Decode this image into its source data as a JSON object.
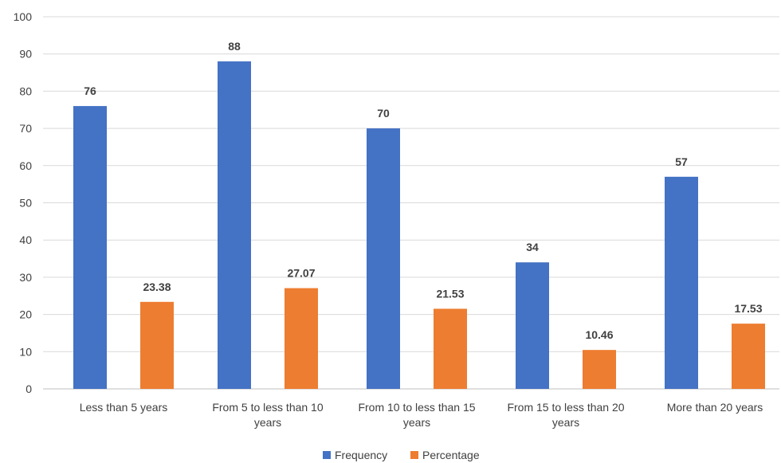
{
  "chart_data": {
    "type": "bar",
    "categories": [
      [
        "Less than 5 years"
      ],
      [
        "From 5 to less than 10",
        "years"
      ],
      [
        "From 10 to less than 15",
        "years"
      ],
      [
        "From 15 to less than 20",
        "years"
      ],
      [
        "More than 20 years"
      ]
    ],
    "series": [
      {
        "name": "Frequency",
        "color": "#4472c4",
        "values": [
          76,
          88,
          70,
          34,
          57
        ],
        "labels": [
          "76",
          "88",
          "70",
          "34",
          "57"
        ]
      },
      {
        "name": "Percentage",
        "color": "#ed7d31",
        "values": [
          23.38,
          27.07,
          21.53,
          10.46,
          17.53
        ],
        "labels": [
          "23.38",
          "27.07",
          "21.53",
          "10.46",
          "17.53"
        ]
      }
    ],
    "y_ticks": [
      "0",
      "10",
      "20",
      "30",
      "40",
      "50",
      "60",
      "70",
      "80",
      "90",
      "100"
    ],
    "ylim": [
      0,
      100
    ],
    "grid": true,
    "legend_position": "bottom-center"
  }
}
